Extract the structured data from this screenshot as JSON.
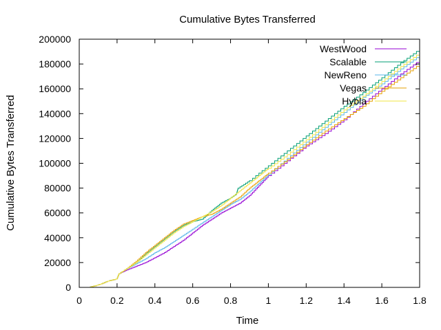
{
  "chart_data": {
    "type": "line",
    "title": "Cumulative Bytes Transferred",
    "xlabel": "Time",
    "ylabel": "Cumulative Bytes Transferred",
    "xlim": [
      0,
      1.8
    ],
    "ylim": [
      0,
      200000
    ],
    "xticks": [
      0,
      0.2,
      0.4,
      0.6,
      0.8,
      1,
      1.2,
      1.4,
      1.6,
      1.8
    ],
    "xtick_labels": [
      "0",
      "0.2",
      "0.4",
      "0.6",
      "0.8",
      "1",
      "1.2",
      "1.4",
      "1.6",
      "1.8"
    ],
    "yticks": [
      0,
      20000,
      40000,
      60000,
      80000,
      100000,
      120000,
      140000,
      160000,
      180000,
      200000
    ],
    "ytick_labels": [
      "0",
      "20000",
      "40000",
      "60000",
      "80000",
      "100000",
      "120000",
      "140000",
      "160000",
      "180000",
      "200000"
    ],
    "legend_position": "top-right",
    "grid": false,
    "series": [
      {
        "name": "WestWood",
        "color": "#9400d3",
        "x": [
          0.05,
          0.1,
          0.15,
          0.2,
          0.21,
          0.25,
          0.3,
          0.35,
          0.4,
          0.45,
          0.5,
          0.55,
          0.6,
          0.65,
          0.7,
          0.75,
          0.8,
          0.85,
          0.9,
          0.95,
          1.0,
          1.1,
          1.2,
          1.3,
          1.4,
          1.5,
          1.6,
          1.7,
          1.8
        ],
        "y": [
          0,
          2000,
          5000,
          7000,
          11000,
          14000,
          17000,
          20000,
          24000,
          28000,
          33000,
          38000,
          44000,
          50000,
          55000,
          60000,
          64000,
          68000,
          74000,
          82000,
          90000,
          102000,
          114000,
          124000,
          135000,
          148000,
          160000,
          172000,
          183000
        ]
      },
      {
        "name": "Scalable",
        "color": "#009e73",
        "x": [
          0.05,
          0.1,
          0.15,
          0.2,
          0.21,
          0.25,
          0.3,
          0.35,
          0.4,
          0.45,
          0.5,
          0.55,
          0.6,
          0.65,
          0.7,
          0.75,
          0.8,
          0.83,
          0.84,
          0.9,
          1.0,
          1.1,
          1.2,
          1.3,
          1.4,
          1.5,
          1.6,
          1.7,
          1.8
        ],
        "y": [
          0,
          2000,
          5000,
          7000,
          11000,
          15000,
          20000,
          27000,
          33000,
          39000,
          45000,
          50000,
          53000,
          55000,
          62000,
          68000,
          72000,
          75000,
          80000,
          86000,
          98000,
          110000,
          122000,
          134000,
          146000,
          157000,
          169000,
          181000,
          192000
        ]
      },
      {
        "name": "NewReno",
        "color": "#56b4e9",
        "x": [
          0.05,
          0.1,
          0.15,
          0.2,
          0.21,
          0.25,
          0.3,
          0.35,
          0.4,
          0.45,
          0.5,
          0.55,
          0.6,
          0.65,
          0.7,
          0.75,
          0.8,
          0.85,
          0.9,
          0.95,
          1.0,
          1.1,
          1.2,
          1.3,
          1.4,
          1.5,
          1.6,
          1.7,
          1.8
        ],
        "y": [
          0,
          2000,
          5000,
          7000,
          11000,
          15000,
          19000,
          23000,
          28000,
          32000,
          37000,
          42000,
          47000,
          52000,
          57000,
          62000,
          67000,
          71000,
          77000,
          84000,
          91000,
          104000,
          117000,
          129000,
          141000,
          153000,
          164000,
          176000,
          187000
        ]
      },
      {
        "name": "Vegas",
        "color": "#e69f00",
        "x": [
          0.05,
          0.1,
          0.15,
          0.2,
          0.21,
          0.25,
          0.3,
          0.35,
          0.4,
          0.45,
          0.5,
          0.55,
          0.6,
          0.65,
          0.7,
          0.75,
          0.8,
          0.85,
          0.9,
          0.95,
          1.0,
          1.1,
          1.2,
          1.3,
          1.4,
          1.5,
          1.6,
          1.7,
          1.8
        ],
        "y": [
          0,
          2000,
          5000,
          7000,
          11000,
          15000,
          21000,
          28000,
          34000,
          40000,
          46000,
          51000,
          54000,
          57000,
          59000,
          63000,
          68000,
          73000,
          80000,
          86000,
          92000,
          103000,
          115000,
          126000,
          136000,
          146000,
          158000,
          169000,
          180000
        ]
      },
      {
        "name": "Hybla",
        "color": "#f0e442",
        "x": [
          0.05,
          0.1,
          0.15,
          0.2,
          0.21,
          0.25,
          0.3,
          0.35,
          0.4,
          0.45,
          0.5,
          0.55,
          0.6,
          0.65,
          0.7,
          0.75,
          0.8,
          0.85,
          0.9,
          0.95,
          1.0,
          1.1,
          1.2,
          1.3,
          1.4,
          1.5,
          1.6,
          1.7,
          1.8
        ],
        "y": [
          0,
          2000,
          5000,
          7000,
          11000,
          15000,
          20000,
          26000,
          32000,
          38000,
          44000,
          49000,
          53000,
          57000,
          61000,
          66000,
          72000,
          78000,
          84000,
          90000,
          96000,
          107000,
          119000,
          131000,
          143000,
          154000,
          166000,
          178000,
          189000
        ]
      }
    ]
  }
}
